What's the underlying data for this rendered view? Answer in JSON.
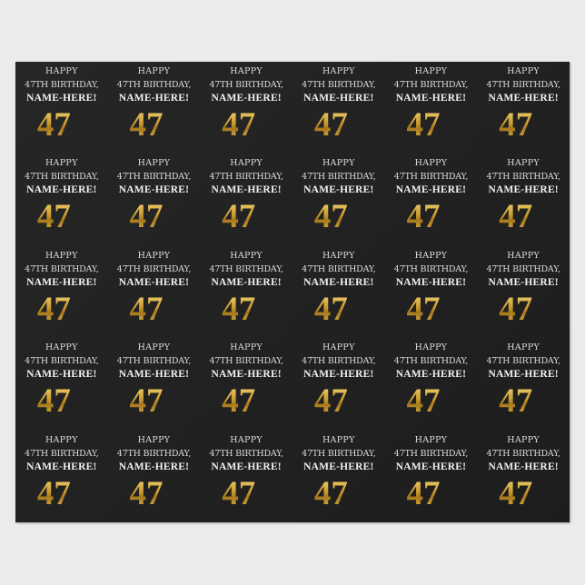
{
  "product": "wrapping-paper",
  "colors": {
    "paper": "#222222",
    "gold": "#c99a2c",
    "text": "#e8e8e8",
    "background": "#ebebeb"
  },
  "tile": {
    "line1": "HAPPY",
    "line2": "47TH BIRTHDAY,",
    "line3": "NAME-HERE!",
    "number": "47",
    "suffix": "th"
  }
}
